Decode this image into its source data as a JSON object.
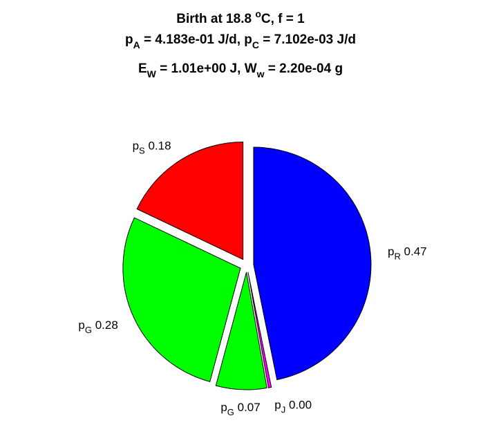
{
  "title": {
    "line1": {
      "pre": "Birth at 18.8 ",
      "sup": "o",
      "post": "C, f = 1"
    },
    "line2": {
      "a_base": "p",
      "a_sub": "A",
      "a_val": " = 4.183e-01 J/d, ",
      "c_base": "p",
      "c_sub": "C",
      "c_val": " = 7.102e-03 J/d"
    },
    "line3": {
      "e_base": "E",
      "e_sub": "W",
      "e_val": " = 1.01e+00 J, ",
      "w_base": "W",
      "w_sub": "w",
      "w_val": " = 2.20e-04 g"
    }
  },
  "chart_data": {
    "type": "pie",
    "title": "Birth at 18.8 °C, f = 1 | p_A = 4.183e-01 J/d, p_C = 7.102e-03 J/d | E_W = 1.01e+00 J, W_w = 2.20e-04 g",
    "slices": [
      {
        "base": "p",
        "sub": "R",
        "label_value": "0.47",
        "value": 0.47,
        "color": "#0000ff"
      },
      {
        "base": "p",
        "sub": "J",
        "label_value": "0.00",
        "value": 0.004,
        "color": "#ff00ff"
      },
      {
        "base": "p",
        "sub": "G",
        "label_value": "0.07",
        "value": 0.07,
        "color": "#00ff00"
      },
      {
        "base": "p",
        "sub": "G",
        "label_value": "0.28",
        "value": 0.28,
        "color": "#00ff00"
      },
      {
        "base": "p",
        "sub": "S",
        "label_value": "0.18",
        "value": 0.18,
        "color": "#ff0000"
      }
    ],
    "start_angle_deg": 90,
    "direction": "clockwise",
    "exploded": true
  }
}
